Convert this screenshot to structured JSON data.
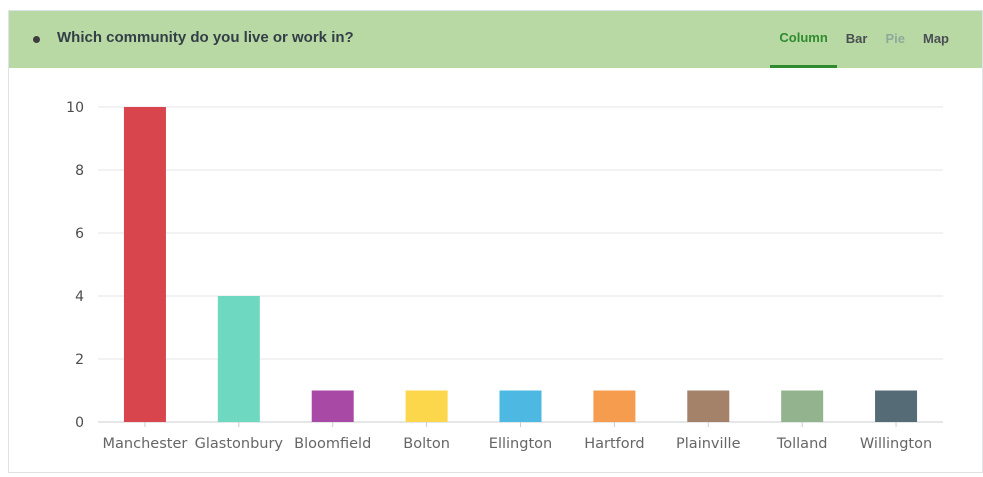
{
  "header": {
    "question": "Which community do you live or work in?",
    "tabs": [
      {
        "label": "Column",
        "state": "active"
      },
      {
        "label": "Bar",
        "state": "normal"
      },
      {
        "label": "Pie",
        "state": "disabled"
      },
      {
        "label": "Map",
        "state": "normal"
      }
    ]
  },
  "chart_data": {
    "type": "bar",
    "categories": [
      "Manchester",
      "Glastonbury",
      "Bloomfield",
      "Bolton",
      "Ellington",
      "Hartford",
      "Plainville",
      "Tolland",
      "Willington"
    ],
    "values": [
      10,
      4,
      1,
      1,
      1,
      1,
      1,
      1,
      1
    ],
    "colors": [
      "#d9454d",
      "#6fd8c0",
      "#a84aa5",
      "#fcd64b",
      "#4db8e2",
      "#f59c4e",
      "#a38269",
      "#93b38f",
      "#556c76"
    ],
    "yticks": [
      "0",
      "2",
      "4",
      "6",
      "8",
      "10"
    ],
    "ylim": [
      0,
      10
    ],
    "grid": true,
    "title": "",
    "xlabel": "",
    "ylabel": ""
  }
}
